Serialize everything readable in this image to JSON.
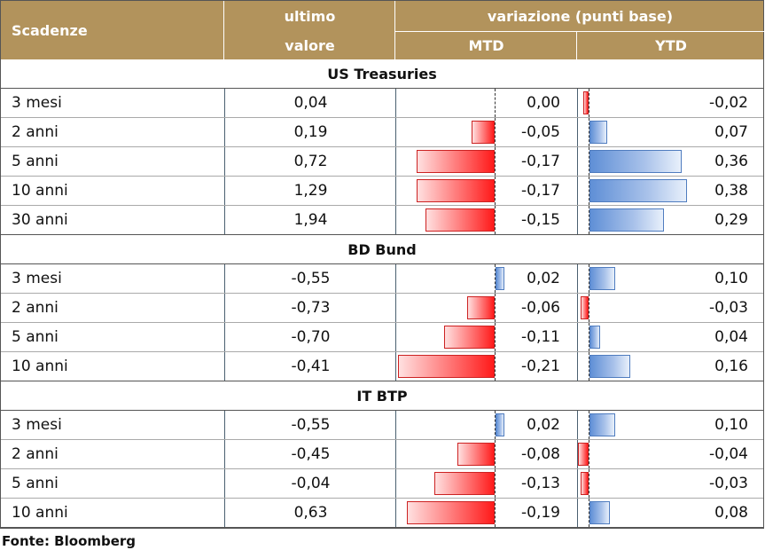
{
  "header": {
    "col_scadenze": "Scadenze",
    "col_ultimo_line1": "ultimo",
    "col_ultimo_line2": "valore",
    "group_variazione": "variazione (punti base)",
    "col_mtd": "MTD",
    "col_ytd": "YTD"
  },
  "sections": [
    {
      "title": "US Treasuries",
      "rows": [
        {
          "scadenza": "3 mesi",
          "ultimo": "0,04",
          "mtd": "0,00",
          "ytd": "-0,02"
        },
        {
          "scadenza": "2 anni",
          "ultimo": "0,19",
          "mtd": "-0,05",
          "ytd": "0,07"
        },
        {
          "scadenza": "5 anni",
          "ultimo": "0,72",
          "mtd": "-0,17",
          "ytd": "0,36"
        },
        {
          "scadenza": "10 anni",
          "ultimo": "1,29",
          "mtd": "-0,17",
          "ytd": "0,38"
        },
        {
          "scadenza": "30 anni",
          "ultimo": "1,94",
          "mtd": "-0,15",
          "ytd": "0,29"
        }
      ]
    },
    {
      "title": "BD Bund",
      "rows": [
        {
          "scadenza": "3 mesi",
          "ultimo": "-0,55",
          "mtd": "0,02",
          "ytd": "0,10"
        },
        {
          "scadenza": "2 anni",
          "ultimo": "-0,73",
          "mtd": "-0,06",
          "ytd": "-0,03"
        },
        {
          "scadenza": "5 anni",
          "ultimo": "-0,70",
          "mtd": "-0,11",
          "ytd": "0,04"
        },
        {
          "scadenza": "10 anni",
          "ultimo": "-0,41",
          "mtd": "-0,21",
          "ytd": "0,16"
        }
      ]
    },
    {
      "title": "IT BTP",
      "rows": [
        {
          "scadenza": "3 mesi",
          "ultimo": "-0,55",
          "mtd": "0,02",
          "ytd": "0,10"
        },
        {
          "scadenza": "2 anni",
          "ultimo": "-0,45",
          "mtd": "-0,08",
          "ytd": "-0,04"
        },
        {
          "scadenza": "5 anni",
          "ultimo": "-0,04",
          "mtd": "-0,13",
          "ytd": "-0,03"
        },
        {
          "scadenza": "10 anni",
          "ultimo": "0,63",
          "mtd": "-0,19",
          "ytd": "0,08"
        }
      ]
    }
  ],
  "source": "Fonte: Bloomberg",
  "colors": {
    "header_bg": "#b2935c",
    "negative_bar": "#ff1a1a",
    "positive_bar": "#5f8fd6"
  }
}
